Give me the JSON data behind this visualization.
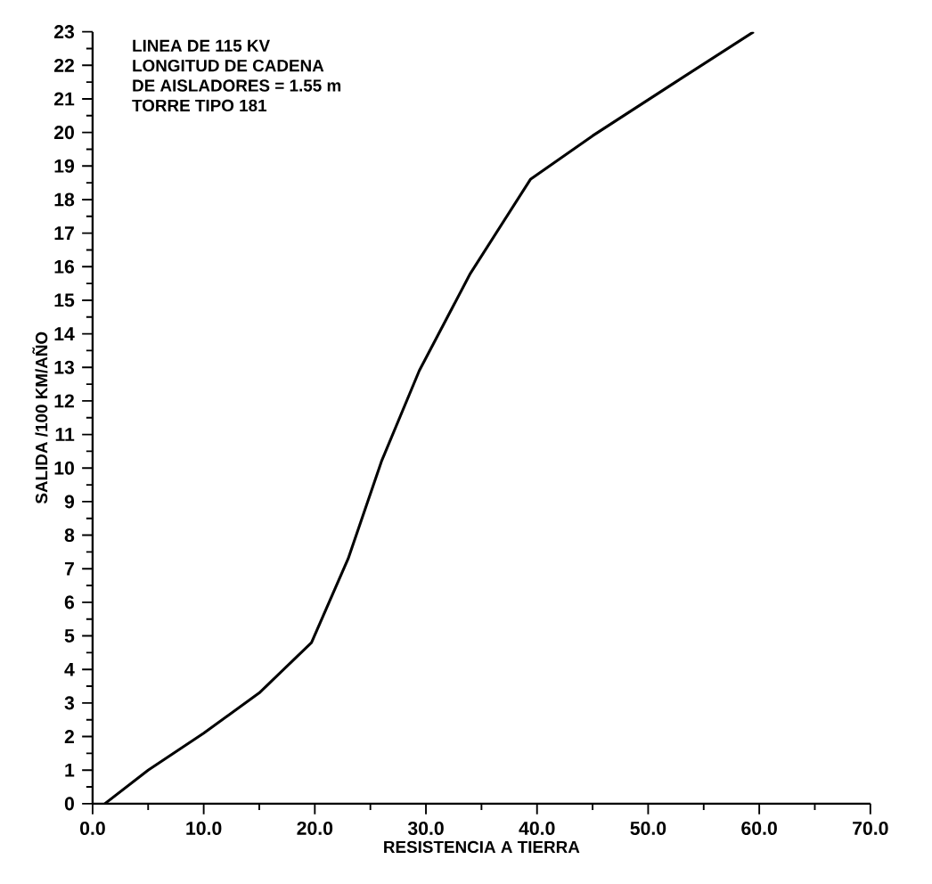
{
  "chart_data": {
    "type": "line",
    "xlabel": "RESISTENCIA A TIERRA",
    "ylabel": "SALIDA /100 KM/AÑO",
    "annotations": [
      "LINEA DE 115 KV",
      "LONGITUD DE CADENA",
      "DE AISLADORES = 1.55 m",
      "TORRE TIPO 181"
    ],
    "x": [
      1.1,
      5,
      10,
      15,
      19.7,
      23,
      26,
      29.4,
      34,
      39.4,
      45,
      52,
      59.5
    ],
    "values": [
      0,
      1.0,
      2.1,
      3.3,
      4.8,
      7.3,
      10.2,
      12.9,
      15.8,
      18.6,
      19.9,
      21.4,
      23.0
    ],
    "color": "#000000",
    "marker": "none",
    "line_style": "solid",
    "grid": false,
    "xlim": [
      0,
      70
    ],
    "ylim": [
      0,
      23
    ],
    "xticks": [
      {
        "value": 0,
        "label": "0.0"
      },
      {
        "value": 10,
        "label": "10.0"
      },
      {
        "value": 20,
        "label": "20.0"
      },
      {
        "value": 30,
        "label": "30.0"
      },
      {
        "value": 40,
        "label": "40.0"
      },
      {
        "value": 50,
        "label": "50.0"
      },
      {
        "value": 60,
        "label": "60.0"
      },
      {
        "value": 70,
        "label": "70.0"
      }
    ],
    "yticks": [
      0,
      1,
      2,
      3,
      4,
      5,
      6,
      7,
      8,
      9,
      10,
      11,
      12,
      13,
      14,
      15,
      16,
      17,
      18,
      19,
      20,
      21,
      22,
      23
    ]
  }
}
